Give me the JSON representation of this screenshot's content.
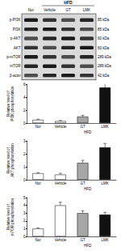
{
  "blot": {
    "group_label": "HFD",
    "lanes": [
      "Nor",
      "Vehicle",
      "GT",
      "LMK"
    ],
    "rows": [
      {
        "label": "p-PI3K",
        "size": "85 kDa"
      },
      {
        "label": "PI3K",
        "size": "85 kDa"
      },
      {
        "label": "p-AKT",
        "size": "60 kDa"
      },
      {
        "label": "AKT",
        "size": "60 kDa"
      },
      {
        "label": "p-mTOR",
        "size": "289 kDa"
      },
      {
        "label": "mTOR",
        "size": "289 kDa"
      },
      {
        "label": "β-actin",
        "size": "42 kDa"
      }
    ]
  },
  "chart_data": [
    {
      "type": "bar",
      "ylabel": "Relative level of\nPI3K phosphorylation",
      "xlabel": "HFD",
      "categories": [
        "Nor",
        "Vehicle",
        "GT",
        "LMK"
      ],
      "values": [
        0.5,
        0.3,
        1.0,
        5.5
      ],
      "errors": [
        0.1,
        0.1,
        0.2,
        0.6
      ],
      "colors": [
        "#ffffff",
        "#ffffff",
        "#a6a6a6",
        "#111111"
      ],
      "ylim": [
        0,
        6
      ],
      "yticks": [
        0,
        2,
        4,
        6
      ]
    },
    {
      "type": "bar",
      "ylabel": "Relative level of\nAKT phosphorylation",
      "xlabel": "HFD",
      "categories": [
        "Nor",
        "Vehicle",
        "GT",
        "LMK"
      ],
      "values": [
        0.5,
        0.4,
        1.3,
        2.5
      ],
      "errors": [
        0.05,
        0.1,
        0.2,
        0.3
      ],
      "colors": [
        "#ffffff",
        "#ffffff",
        "#a6a6a6",
        "#111111"
      ],
      "ylim": [
        0,
        3
      ],
      "yticks": [
        0,
        1,
        2,
        3
      ]
    },
    {
      "type": "bar",
      "ylabel": "Relative level of\nmTOR phosphorylation",
      "xlabel": "HFD",
      "categories": [
        "Nor",
        "Vehicle",
        "GT",
        "LMK"
      ],
      "values": [
        1.0,
        4.0,
        3.0,
        2.8
      ],
      "errors": [
        0.1,
        0.4,
        0.3,
        0.3
      ],
      "colors": [
        "#ffffff",
        "#ffffff",
        "#a6a6a6",
        "#111111"
      ],
      "ylim": [
        0,
        5
      ],
      "yticks": [
        0,
        1,
        2,
        3,
        4,
        5
      ]
    }
  ]
}
